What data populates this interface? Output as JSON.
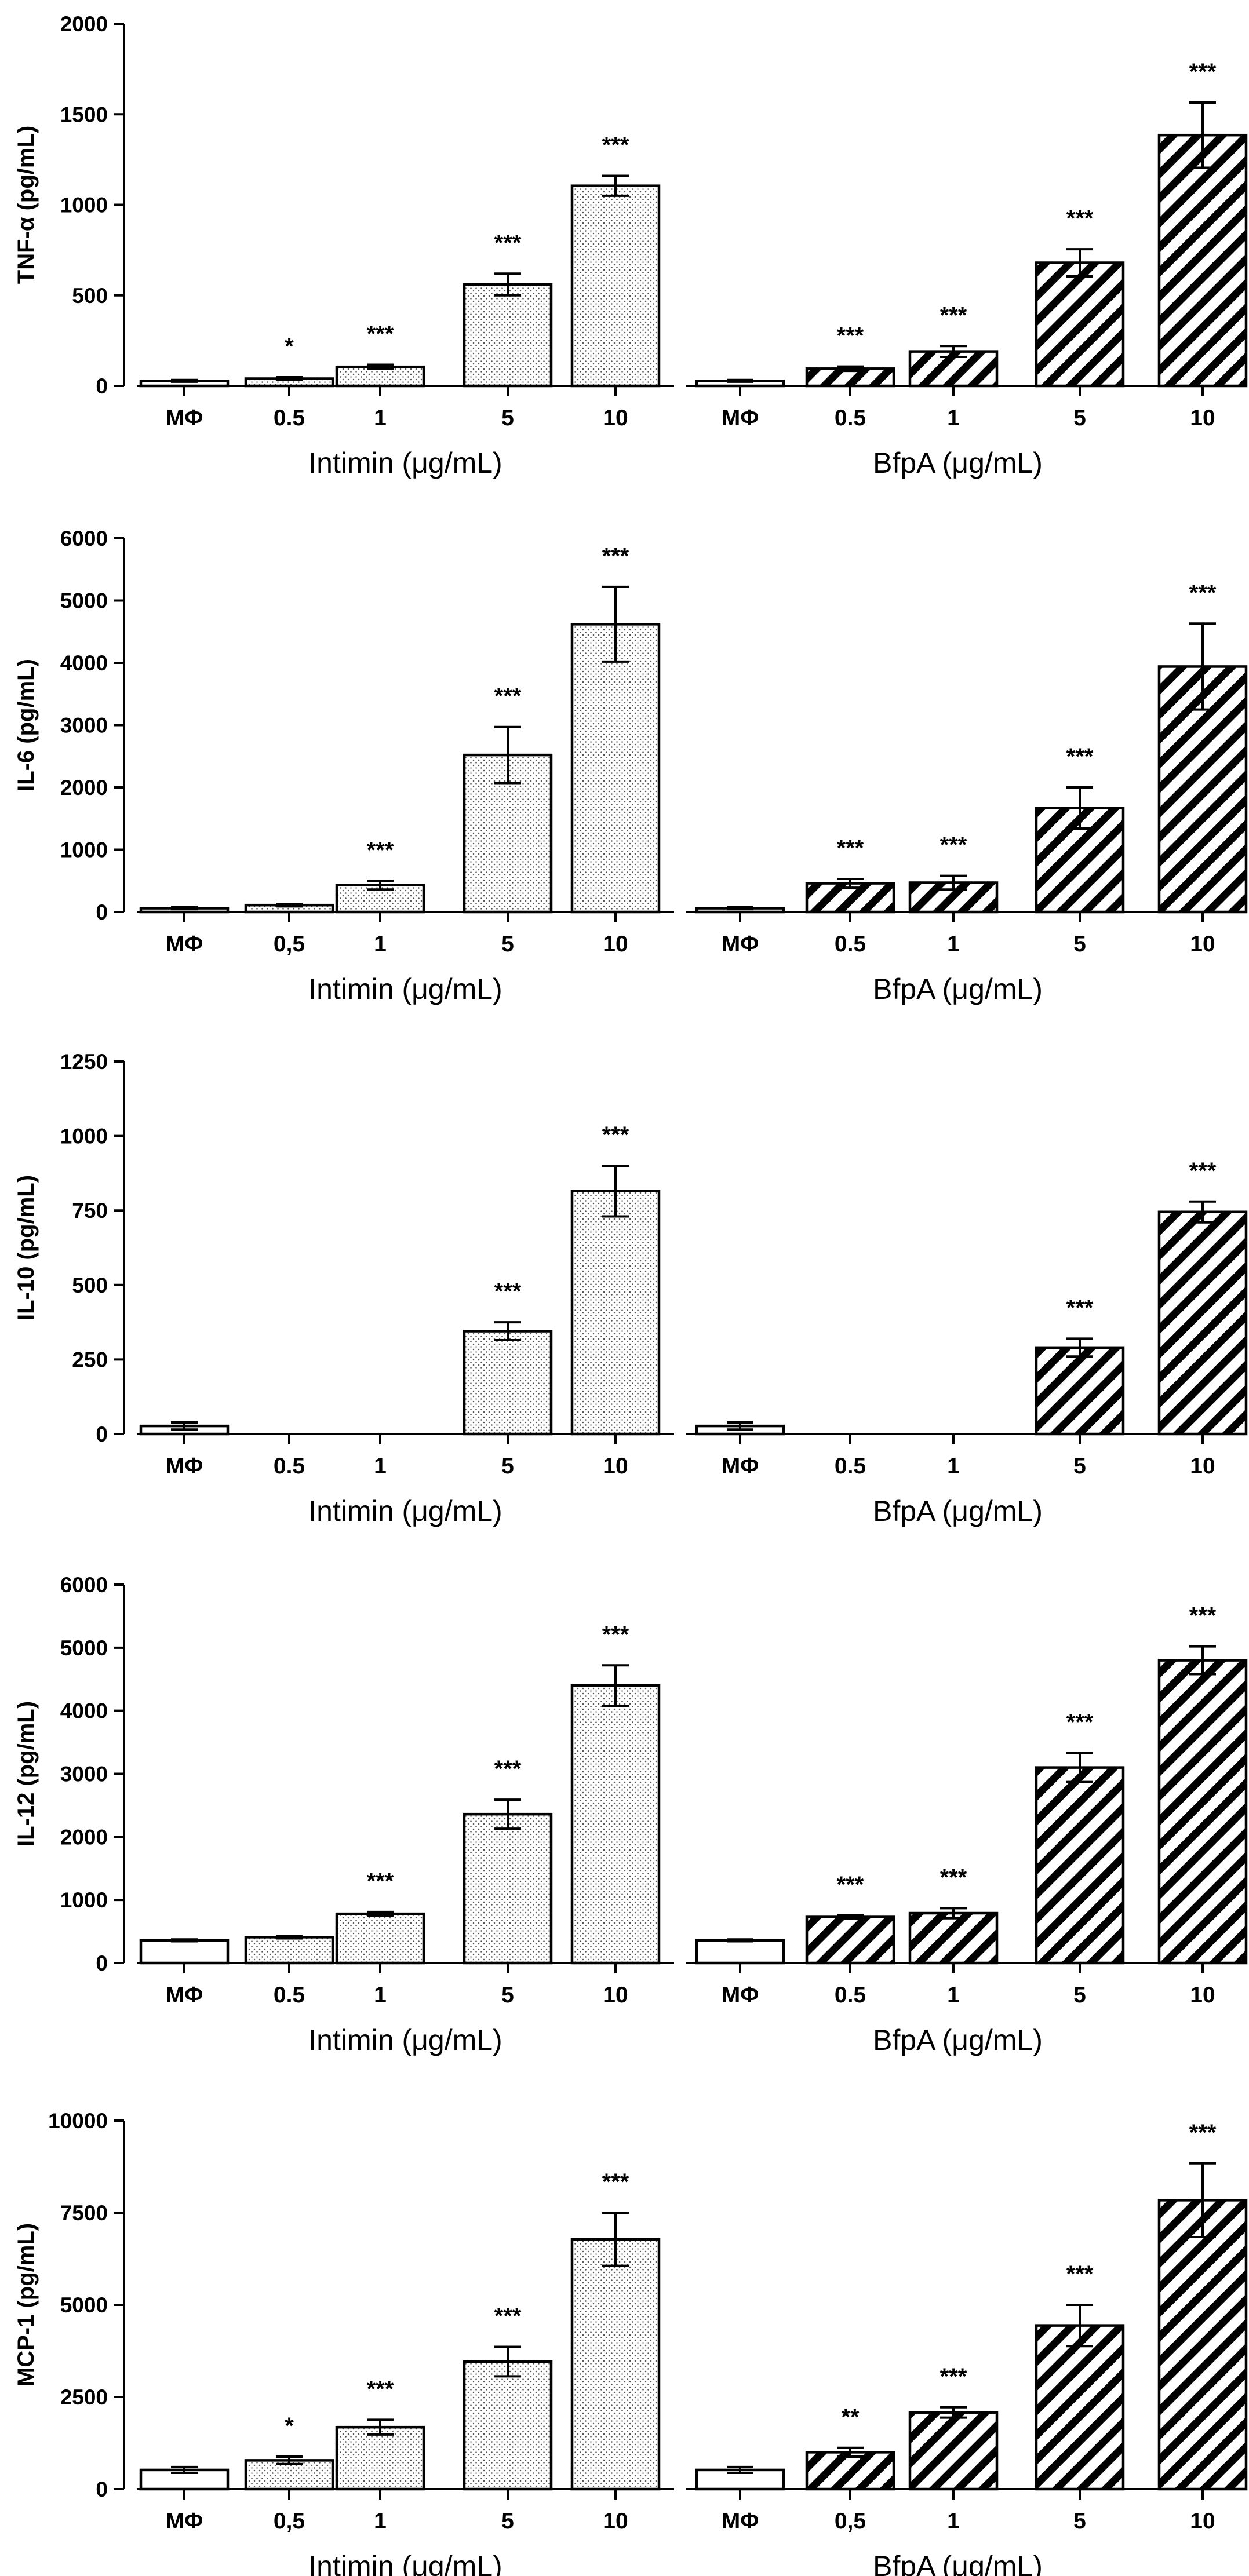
{
  "chart_data": [
    {
      "type": "bar",
      "ylabel": "TNF-α (pg/mL)",
      "ylim": [
        0,
        2000
      ],
      "yticks": [
        0,
        500,
        1000,
        1500,
        2000
      ],
      "ytick_labels": [
        "0",
        "500",
        "1000",
        "1500",
        "2000"
      ],
      "groups": [
        {
          "name": "Intimin",
          "pattern": "dots",
          "xlabel": "Intimin (μg/mL)",
          "categories": [
            "MΦ",
            "0.5",
            "1",
            "5",
            "10"
          ],
          "values": [
            28,
            40,
            105,
            560,
            1105
          ],
          "errors": [
            5,
            8,
            12,
            60,
            55
          ],
          "significance": [
            "",
            "*",
            "***",
            "***",
            "***"
          ]
        },
        {
          "name": "BfpA",
          "pattern": "stripes",
          "xlabel": "BfpA (μg/mL)",
          "categories": [
            "MΦ",
            "0.5",
            "1",
            "5",
            "10"
          ],
          "values": [
            28,
            95,
            190,
            680,
            1385
          ],
          "errors": [
            5,
            12,
            30,
            75,
            180
          ],
          "significance": [
            "",
            "***",
            "***",
            "***",
            "***"
          ]
        }
      ]
    },
    {
      "type": "bar",
      "ylabel": "IL-6 (pg/mL)",
      "ylim": [
        0,
        6000
      ],
      "yticks": [
        0,
        1000,
        2000,
        3000,
        4000,
        5000,
        6000
      ],
      "ytick_labels": [
        "0",
        "1000",
        "2000",
        "3000",
        "4000",
        "5000",
        "6000"
      ],
      "groups": [
        {
          "name": "Intimin",
          "pattern": "dots",
          "xlabel": "Intimin (μg/mL)",
          "categories": [
            "MΦ",
            "0,5",
            "1",
            "5",
            "10"
          ],
          "values": [
            60,
            110,
            430,
            2520,
            4620
          ],
          "errors": [
            15,
            20,
            70,
            450,
            600
          ],
          "significance": [
            "",
            "",
            "***",
            "***",
            "***"
          ]
        },
        {
          "name": "BfpA",
          "pattern": "stripes",
          "xlabel": "BfpA (μg/mL)",
          "categories": [
            "MΦ",
            "0.5",
            "1",
            "5",
            "10"
          ],
          "values": [
            60,
            460,
            470,
            1670,
            3940
          ],
          "errors": [
            15,
            70,
            110,
            330,
            690
          ],
          "significance": [
            "",
            "***",
            "***",
            "***",
            "***"
          ]
        }
      ]
    },
    {
      "type": "bar",
      "ylabel": "IL-10 (pg/mL)",
      "ylim": [
        0,
        1250
      ],
      "yticks": [
        0,
        250,
        500,
        750,
        1000,
        1250
      ],
      "ytick_labels": [
        "0",
        "250",
        "500",
        "750",
        "1000",
        "1250"
      ],
      "groups": [
        {
          "name": "Intimin",
          "pattern": "dots",
          "xlabel": "Intimin (μg/mL)",
          "categories": [
            "MΦ",
            "0.5",
            "1",
            "5",
            "10"
          ],
          "values": [
            27,
            0,
            0,
            345,
            815
          ],
          "errors": [
            12,
            0,
            0,
            30,
            85
          ],
          "significance": [
            "",
            "",
            "",
            "***",
            "***"
          ]
        },
        {
          "name": "BfpA",
          "pattern": "stripes",
          "xlabel": "BfpA (μg/mL)",
          "categories": [
            "MΦ",
            "0.5",
            "1",
            "5",
            "10"
          ],
          "values": [
            27,
            0,
            0,
            290,
            745
          ],
          "errors": [
            12,
            0,
            0,
            30,
            35
          ],
          "significance": [
            "",
            "",
            "",
            "***",
            "***"
          ]
        }
      ]
    },
    {
      "type": "bar",
      "ylabel": "IL-12 (pg/mL)",
      "ylim": [
        0,
        6000
      ],
      "yticks": [
        0,
        1000,
        2000,
        3000,
        4000,
        5000,
        6000
      ],
      "ytick_labels": [
        "0",
        "1000",
        "2000",
        "3000",
        "4000",
        "5000",
        "6000"
      ],
      "groups": [
        {
          "name": "Intimin",
          "pattern": "dots",
          "xlabel": "Intimin (μg/mL)",
          "categories": [
            "MΦ",
            "0.5",
            "1",
            "5",
            "10"
          ],
          "values": [
            360,
            410,
            780,
            2360,
            4400
          ],
          "errors": [
            15,
            20,
            30,
            230,
            320
          ],
          "significance": [
            "",
            "",
            "***",
            "***",
            "***"
          ]
        },
        {
          "name": "BfpA",
          "pattern": "stripes",
          "xlabel": "BfpA (μg/mL)",
          "categories": [
            "MΦ",
            "0.5",
            "1",
            "5",
            "10"
          ],
          "values": [
            360,
            730,
            790,
            3100,
            4800
          ],
          "errors": [
            15,
            25,
            80,
            230,
            220
          ],
          "significance": [
            "",
            "***",
            "***",
            "***",
            "***"
          ]
        }
      ]
    },
    {
      "type": "bar",
      "ylabel": "MCP-1 (pg/mL)",
      "ylim": [
        0,
        10000
      ],
      "yticks": [
        0,
        2500,
        5000,
        7500,
        10000
      ],
      "ytick_labels": [
        "0",
        "2500",
        "5000",
        "7500",
        "10000"
      ],
      "groups": [
        {
          "name": "Intimin",
          "pattern": "dots",
          "xlabel": "Intimin (μg/mL)",
          "categories": [
            "MΦ",
            "0,5",
            "1",
            "5",
            "10"
          ],
          "values": [
            520,
            780,
            1680,
            3460,
            6780
          ],
          "errors": [
            80,
            100,
            200,
            400,
            720
          ],
          "significance": [
            "",
            "*",
            "***",
            "***",
            "***"
          ]
        },
        {
          "name": "BfpA",
          "pattern": "stripes",
          "xlabel": "BfpA (μg/mL)",
          "categories": [
            "MΦ",
            "0,5",
            "1",
            "5",
            "10"
          ],
          "values": [
            520,
            1000,
            2080,
            4440,
            7840
          ],
          "errors": [
            80,
            120,
            140,
            560,
            1000
          ],
          "significance": [
            "",
            "**",
            "***",
            "***",
            "***"
          ]
        }
      ]
    }
  ]
}
